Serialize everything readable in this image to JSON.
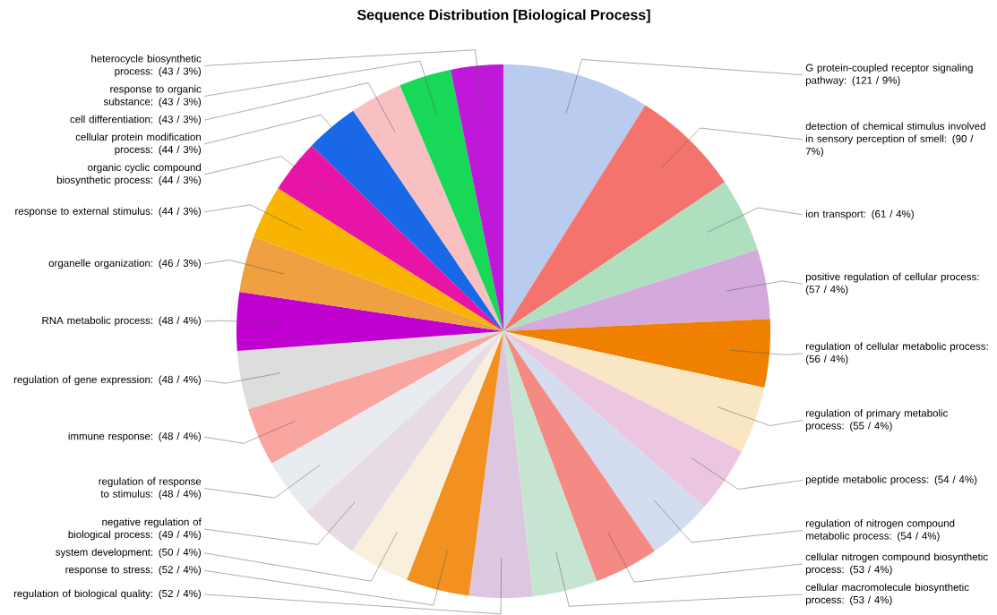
{
  "chart_data": {
    "type": "pie",
    "title": "Sequence Distribution [Biological Process]",
    "categories": [
      "G protein-coupled receptor signaling pathway: (121 / 9%)",
      "detection of chemical stimulus involved in sensory perception of smell: (90 / 7%)",
      "ion transport: (61 / 4%)",
      "positive regulation of cellular process: (57 / 4%)",
      "regulation of cellular metabolic process: (56 / 4%)",
      "regulation of primary metabolic process: (55 / 4%)",
      "peptide metabolic process: (54 / 4%)",
      "regulation of nitrogen compound metabolic process: (54 / 4%)",
      "cellular nitrogen compound biosynthetic process: (53 / 4%)",
      "cellular macromolecule biosynthetic process: (53 / 4%)",
      "regulation of biological quality: (52 / 4%)",
      "response to stress: (52 / 4%)",
      "system development: (50 / 4%)",
      "negative regulation of biological process: (49 / 4%)",
      "regulation of response to stimulus: (48 / 4%)",
      "immune response: (48 / 4%)",
      "regulation of gene expression: (48 / 4%)",
      "RNA metabolic process: (48 / 4%)",
      "organelle organization: (46 / 3%)",
      "response to external stimulus: (44 / 3%)",
      "organic cyclic compound biosynthetic process: (44 / 3%)",
      "cellular protein modification process: (44 / 3%)",
      "cell differentiation: (43 / 3%)",
      "response to organic substance: (43 / 3%)",
      "heterocycle biosynthetic process: (43 / 3%)"
    ],
    "values": [
      121,
      90,
      61,
      57,
      56,
      55,
      54,
      54,
      53,
      53,
      52,
      52,
      50,
      49,
      48,
      48,
      48,
      48,
      46,
      44,
      44,
      44,
      43,
      43,
      43
    ],
    "colors": [
      "#b9cbee",
      "#f4736c",
      "#aee0c0",
      "#d4a9dc",
      "#f08000",
      "#f8e6c4",
      "#ecc6e0",
      "#d4dcf0",
      "#f58a85",
      "#c6e5d0",
      "#dcc6e0",
      "#f29020",
      "#f8f0dc",
      "#e8dce4",
      "#e8ecf0",
      "#f9a5a0",
      "#dcdedc",
      "#c000d0",
      "#f0a040",
      "#f8b400",
      "#e814a8",
      "#1868e8",
      "#f8c0c0",
      "#18d858",
      "#c018d8"
    ]
  }
}
